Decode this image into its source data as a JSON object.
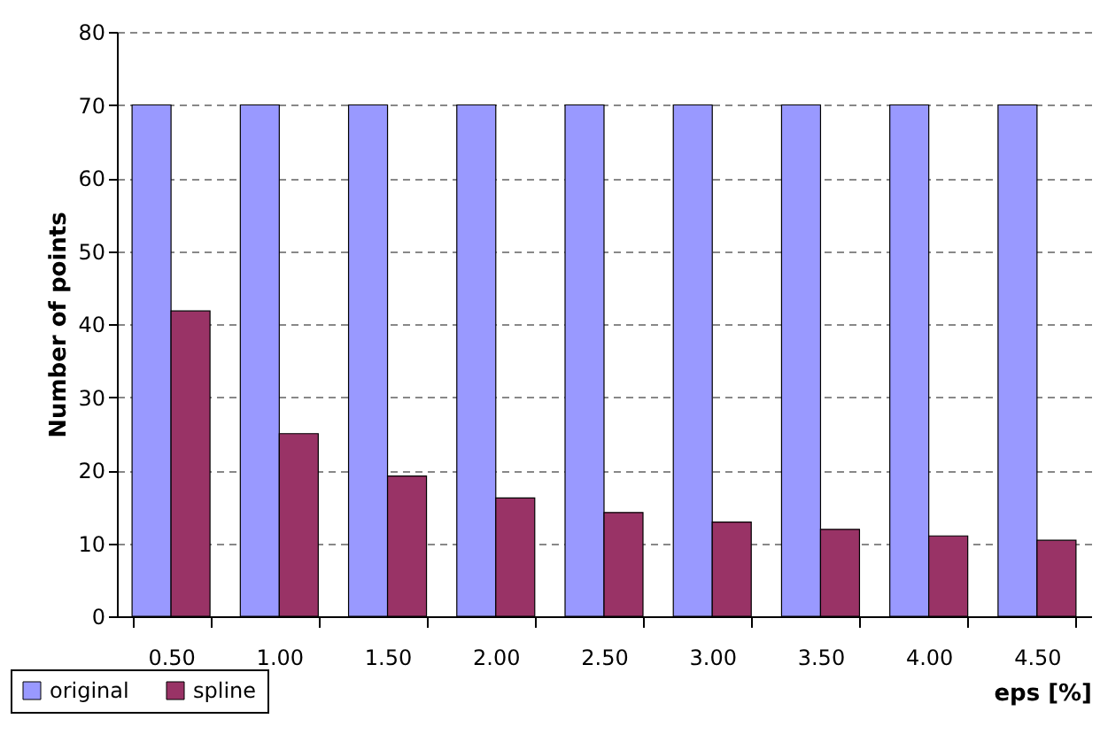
{
  "chart_data": {
    "type": "bar",
    "xlabel": "eps [%]",
    "ylabel": "Number of points",
    "categories": [
      "0.50",
      "1.00",
      "1.50",
      "2.00",
      "2.50",
      "3.00",
      "3.50",
      "4.00",
      "4.50"
    ],
    "series": [
      {
        "name": "original",
        "color": "#9999ff",
        "values": [
          70,
          70,
          70,
          70,
          70,
          70,
          70,
          70,
          70
        ]
      },
      {
        "name": "spline",
        "color": "#993366",
        "values": [
          41.8,
          25.0,
          19.2,
          16.2,
          14.2,
          12.9,
          11.9,
          11.0,
          10.4
        ]
      }
    ],
    "ylim": [
      0,
      80
    ],
    "yticks": [
      0,
      10,
      20,
      30,
      40,
      50,
      60,
      70,
      80
    ],
    "grid": "y",
    "legend": "bottom left"
  }
}
